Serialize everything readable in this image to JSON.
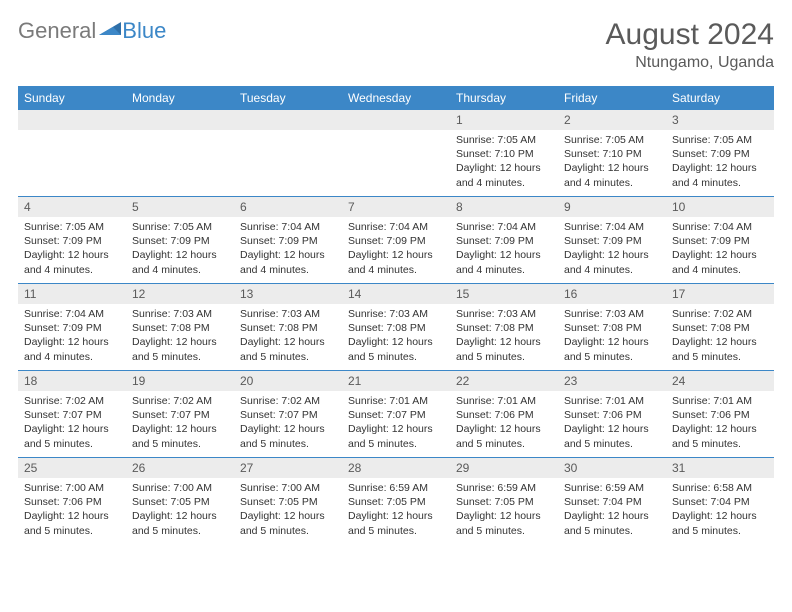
{
  "brand": {
    "part1": "General",
    "part2": "Blue"
  },
  "title": "August 2024",
  "location": "Ntungamo, Uganda",
  "colors": {
    "header_bg": "#3c87c7",
    "header_text": "#ffffff",
    "daynum_bg": "#ececec",
    "text_muted": "#5a5a5a",
    "divider": "#3c87c7",
    "brand_gray": "#7a7a7a",
    "brand_blue": "#3c87c7"
  },
  "day_labels": [
    "Sunday",
    "Monday",
    "Tuesday",
    "Wednesday",
    "Thursday",
    "Friday",
    "Saturday"
  ],
  "weeks": [
    [
      {
        "n": "",
        "sr": "",
        "ss": "",
        "dl": ""
      },
      {
        "n": "",
        "sr": "",
        "ss": "",
        "dl": ""
      },
      {
        "n": "",
        "sr": "",
        "ss": "",
        "dl": ""
      },
      {
        "n": "",
        "sr": "",
        "ss": "",
        "dl": ""
      },
      {
        "n": "1",
        "sr": "Sunrise: 7:05 AM",
        "ss": "Sunset: 7:10 PM",
        "dl": "Daylight: 12 hours and 4 minutes."
      },
      {
        "n": "2",
        "sr": "Sunrise: 7:05 AM",
        "ss": "Sunset: 7:10 PM",
        "dl": "Daylight: 12 hours and 4 minutes."
      },
      {
        "n": "3",
        "sr": "Sunrise: 7:05 AM",
        "ss": "Sunset: 7:09 PM",
        "dl": "Daylight: 12 hours and 4 minutes."
      }
    ],
    [
      {
        "n": "4",
        "sr": "Sunrise: 7:05 AM",
        "ss": "Sunset: 7:09 PM",
        "dl": "Daylight: 12 hours and 4 minutes."
      },
      {
        "n": "5",
        "sr": "Sunrise: 7:05 AM",
        "ss": "Sunset: 7:09 PM",
        "dl": "Daylight: 12 hours and 4 minutes."
      },
      {
        "n": "6",
        "sr": "Sunrise: 7:04 AM",
        "ss": "Sunset: 7:09 PM",
        "dl": "Daylight: 12 hours and 4 minutes."
      },
      {
        "n": "7",
        "sr": "Sunrise: 7:04 AM",
        "ss": "Sunset: 7:09 PM",
        "dl": "Daylight: 12 hours and 4 minutes."
      },
      {
        "n": "8",
        "sr": "Sunrise: 7:04 AM",
        "ss": "Sunset: 7:09 PM",
        "dl": "Daylight: 12 hours and 4 minutes."
      },
      {
        "n": "9",
        "sr": "Sunrise: 7:04 AM",
        "ss": "Sunset: 7:09 PM",
        "dl": "Daylight: 12 hours and 4 minutes."
      },
      {
        "n": "10",
        "sr": "Sunrise: 7:04 AM",
        "ss": "Sunset: 7:09 PM",
        "dl": "Daylight: 12 hours and 4 minutes."
      }
    ],
    [
      {
        "n": "11",
        "sr": "Sunrise: 7:04 AM",
        "ss": "Sunset: 7:09 PM",
        "dl": "Daylight: 12 hours and 4 minutes."
      },
      {
        "n": "12",
        "sr": "Sunrise: 7:03 AM",
        "ss": "Sunset: 7:08 PM",
        "dl": "Daylight: 12 hours and 5 minutes."
      },
      {
        "n": "13",
        "sr": "Sunrise: 7:03 AM",
        "ss": "Sunset: 7:08 PM",
        "dl": "Daylight: 12 hours and 5 minutes."
      },
      {
        "n": "14",
        "sr": "Sunrise: 7:03 AM",
        "ss": "Sunset: 7:08 PM",
        "dl": "Daylight: 12 hours and 5 minutes."
      },
      {
        "n": "15",
        "sr": "Sunrise: 7:03 AM",
        "ss": "Sunset: 7:08 PM",
        "dl": "Daylight: 12 hours and 5 minutes."
      },
      {
        "n": "16",
        "sr": "Sunrise: 7:03 AM",
        "ss": "Sunset: 7:08 PM",
        "dl": "Daylight: 12 hours and 5 minutes."
      },
      {
        "n": "17",
        "sr": "Sunrise: 7:02 AM",
        "ss": "Sunset: 7:08 PM",
        "dl": "Daylight: 12 hours and 5 minutes."
      }
    ],
    [
      {
        "n": "18",
        "sr": "Sunrise: 7:02 AM",
        "ss": "Sunset: 7:07 PM",
        "dl": "Daylight: 12 hours and 5 minutes."
      },
      {
        "n": "19",
        "sr": "Sunrise: 7:02 AM",
        "ss": "Sunset: 7:07 PM",
        "dl": "Daylight: 12 hours and 5 minutes."
      },
      {
        "n": "20",
        "sr": "Sunrise: 7:02 AM",
        "ss": "Sunset: 7:07 PM",
        "dl": "Daylight: 12 hours and 5 minutes."
      },
      {
        "n": "21",
        "sr": "Sunrise: 7:01 AM",
        "ss": "Sunset: 7:07 PM",
        "dl": "Daylight: 12 hours and 5 minutes."
      },
      {
        "n": "22",
        "sr": "Sunrise: 7:01 AM",
        "ss": "Sunset: 7:06 PM",
        "dl": "Daylight: 12 hours and 5 minutes."
      },
      {
        "n": "23",
        "sr": "Sunrise: 7:01 AM",
        "ss": "Sunset: 7:06 PM",
        "dl": "Daylight: 12 hours and 5 minutes."
      },
      {
        "n": "24",
        "sr": "Sunrise: 7:01 AM",
        "ss": "Sunset: 7:06 PM",
        "dl": "Daylight: 12 hours and 5 minutes."
      }
    ],
    [
      {
        "n": "25",
        "sr": "Sunrise: 7:00 AM",
        "ss": "Sunset: 7:06 PM",
        "dl": "Daylight: 12 hours and 5 minutes."
      },
      {
        "n": "26",
        "sr": "Sunrise: 7:00 AM",
        "ss": "Sunset: 7:05 PM",
        "dl": "Daylight: 12 hours and 5 minutes."
      },
      {
        "n": "27",
        "sr": "Sunrise: 7:00 AM",
        "ss": "Sunset: 7:05 PM",
        "dl": "Daylight: 12 hours and 5 minutes."
      },
      {
        "n": "28",
        "sr": "Sunrise: 6:59 AM",
        "ss": "Sunset: 7:05 PM",
        "dl": "Daylight: 12 hours and 5 minutes."
      },
      {
        "n": "29",
        "sr": "Sunrise: 6:59 AM",
        "ss": "Sunset: 7:05 PM",
        "dl": "Daylight: 12 hours and 5 minutes."
      },
      {
        "n": "30",
        "sr": "Sunrise: 6:59 AM",
        "ss": "Sunset: 7:04 PM",
        "dl": "Daylight: 12 hours and 5 minutes."
      },
      {
        "n": "31",
        "sr": "Sunrise: 6:58 AM",
        "ss": "Sunset: 7:04 PM",
        "dl": "Daylight: 12 hours and 5 minutes."
      }
    ]
  ]
}
